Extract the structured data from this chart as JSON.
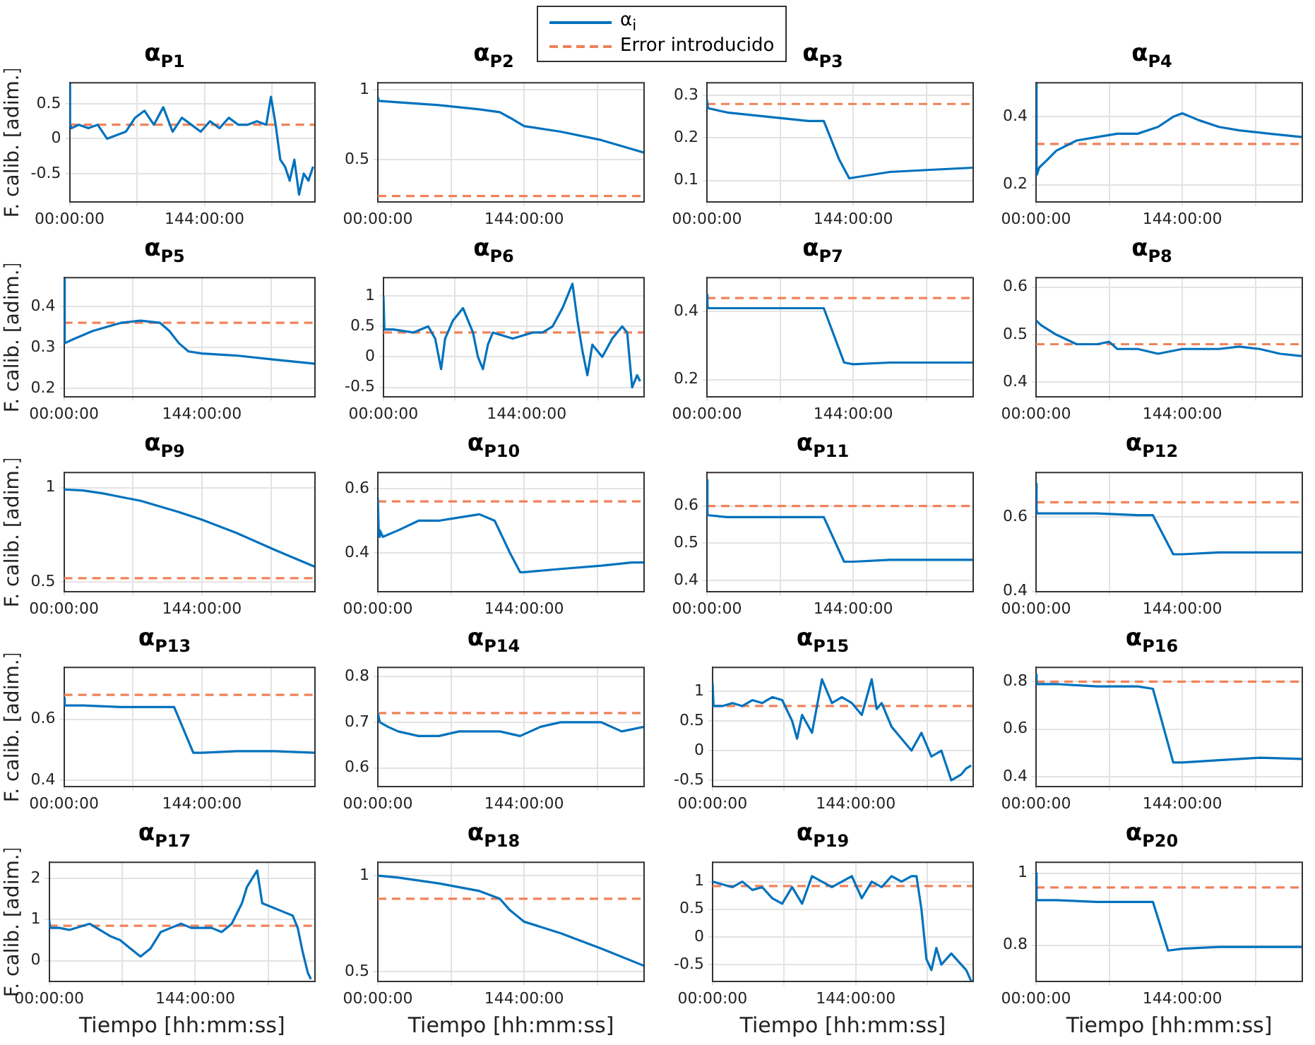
{
  "chart_data": [
    {
      "type": "line",
      "title": "α$_{P1}$",
      "ylabel": "F. calib. [adim.]",
      "legend": "top",
      "xlim": [
        0,
        262
      ],
      "xticks": [
        {
          "value": 0,
          "label": "00:00:00"
        },
        {
          "value": 72,
          "label": null
        },
        {
          "value": 144,
          "label": "144:00:00"
        },
        {
          "value": 216,
          "label": null
        }
      ],
      "ylim": [
        -0.9,
        0.8
      ],
      "yticks": [
        -0.5,
        0,
        0.5
      ],
      "grid": true,
      "series": [
        {
          "name": "α$_{i}$",
          "color": "#0072bd",
          "x": [
            0,
            0.5,
            2,
            10,
            20,
            30,
            40,
            50,
            60,
            70,
            80,
            90,
            100,
            110,
            120,
            130,
            140,
            150,
            160,
            170,
            180,
            190,
            200,
            210,
            215,
            220,
            225,
            230,
            235,
            240,
            245,
            250,
            255,
            260
          ],
          "values": [
            0.8,
            0.2,
            0.15,
            0.2,
            0.15,
            0.2,
            0.0,
            0.05,
            0.1,
            0.3,
            0.4,
            0.2,
            0.45,
            0.1,
            0.3,
            0.2,
            0.1,
            0.25,
            0.15,
            0.3,
            0.2,
            0.2,
            0.25,
            0.2,
            0.6,
            0.2,
            -0.3,
            -0.4,
            -0.6,
            -0.3,
            -0.8,
            -0.5,
            -0.6,
            -0.4
          ]
        },
        {
          "name": "Error introducido",
          "color": "#f0825a",
          "line_style": "dashed",
          "x": [
            0,
            262
          ],
          "values": [
            0.2,
            0.2
          ]
        }
      ]
    },
    {
      "type": "line",
      "title": "α$_{P2}$",
      "xlim": [
        0,
        262
      ],
      "xticks": [
        {
          "value": 0,
          "label": "00:00:00"
        },
        {
          "value": 72,
          "label": null
        },
        {
          "value": 144,
          "label": "144:00:00"
        },
        {
          "value": 216,
          "label": null
        }
      ],
      "ylim": [
        0.2,
        1.05
      ],
      "yticks": [
        0.5,
        1
      ],
      "grid": true,
      "series": [
        {
          "color": "#0072bd",
          "x": [
            0,
            1,
            20,
            60,
            100,
            120,
            130,
            144,
            180,
            220,
            262
          ],
          "values": [
            0.95,
            0.92,
            0.91,
            0.89,
            0.86,
            0.84,
            0.8,
            0.74,
            0.7,
            0.64,
            0.55
          ]
        },
        {
          "color": "#f0825a",
          "line_style": "dashed",
          "x": [
            0,
            262
          ],
          "values": [
            0.24,
            0.24
          ]
        }
      ]
    },
    {
      "type": "line",
      "title": "α$_{P3}$",
      "xlim": [
        0,
        262
      ],
      "xticks": [
        {
          "value": 0,
          "label": "00:00:00"
        },
        {
          "value": 72,
          "label": null
        },
        {
          "value": 144,
          "label": "144:00:00"
        },
        {
          "value": 216,
          "label": null
        }
      ],
      "ylim": [
        0.05,
        0.33
      ],
      "yticks": [
        0.1,
        0.2,
        0.3
      ],
      "grid": true,
      "series": [
        {
          "color": "#0072bd",
          "x": [
            0,
            1,
            20,
            60,
            100,
            115,
            130,
            140,
            180,
            220,
            262
          ],
          "values": [
            0.29,
            0.27,
            0.26,
            0.25,
            0.24,
            0.24,
            0.15,
            0.105,
            0.12,
            0.125,
            0.13
          ]
        },
        {
          "color": "#f0825a",
          "line_style": "dashed",
          "x": [
            0,
            262
          ],
          "values": [
            0.28,
            0.28
          ]
        }
      ]
    },
    {
      "type": "line",
      "title": "α$_{P4}$",
      "xlim": [
        0,
        262
      ],
      "xticks": [
        {
          "value": 0,
          "label": "00:00:00"
        },
        {
          "value": 72,
          "label": null
        },
        {
          "value": 144,
          "label": "144:00:00"
        },
        {
          "value": 216,
          "label": null
        }
      ],
      "ylim": [
        0.15,
        0.5
      ],
      "yticks": [
        0.2,
        0.4
      ],
      "grid": true,
      "series": [
        {
          "color": "#0072bd",
          "x": [
            0,
            0.5,
            1,
            3,
            10,
            20,
            40,
            60,
            80,
            100,
            120,
            135,
            144,
            160,
            180,
            200,
            230,
            262
          ],
          "values": [
            0.5,
            0.25,
            0.23,
            0.25,
            0.27,
            0.3,
            0.33,
            0.34,
            0.35,
            0.35,
            0.37,
            0.4,
            0.41,
            0.39,
            0.37,
            0.36,
            0.35,
            0.34
          ]
        },
        {
          "color": "#f0825a",
          "line_style": "dashed",
          "x": [
            0,
            262
          ],
          "values": [
            0.32,
            0.32
          ]
        }
      ]
    },
    {
      "type": "line",
      "title": "α$_{P5}$",
      "ylabel": "F. calib. [adim.]",
      "xlim": [
        0,
        262
      ],
      "xticks": [
        {
          "value": 0,
          "label": "00:00:00"
        },
        {
          "value": 72,
          "label": null
        },
        {
          "value": 144,
          "label": "144:00:00"
        },
        {
          "value": 216,
          "label": null
        }
      ],
      "ylim": [
        0.18,
        0.47
      ],
      "yticks": [
        0.2,
        0.3,
        0.4
      ],
      "grid": true,
      "series": [
        {
          "color": "#0072bd",
          "x": [
            0,
            0.5,
            1,
            10,
            30,
            60,
            80,
            100,
            110,
            120,
            130,
            144,
            180,
            220,
            262
          ],
          "values": [
            0.47,
            0.31,
            0.31,
            0.32,
            0.34,
            0.36,
            0.365,
            0.36,
            0.34,
            0.31,
            0.29,
            0.285,
            0.28,
            0.27,
            0.26
          ]
        },
        {
          "color": "#f0825a",
          "line_style": "dashed",
          "x": [
            0,
            262
          ],
          "values": [
            0.36,
            0.36
          ]
        }
      ]
    },
    {
      "type": "line",
      "title": "α$_{P6}$",
      "xlim": [
        0,
        262
      ],
      "xticks": [
        {
          "value": 0,
          "label": "00:00:00"
        },
        {
          "value": 72,
          "label": null
        },
        {
          "value": 144,
          "label": "144:00:00"
        },
        {
          "value": 216,
          "label": null
        }
      ],
      "ylim": [
        -0.65,
        1.3
      ],
      "yticks": [
        -0.5,
        0,
        0.5,
        1
      ],
      "grid": true,
      "series": [
        {
          "color": "#0072bd",
          "x": [
            0,
            1,
            10,
            30,
            45,
            52,
            58,
            62,
            70,
            80,
            90,
            95,
            100,
            105,
            110,
            120,
            130,
            140,
            150,
            160,
            170,
            180,
            185,
            190,
            195,
            200,
            205,
            210,
            220,
            230,
            240,
            245,
            250,
            255,
            258
          ],
          "values": [
            1.0,
            0.45,
            0.45,
            0.4,
            0.5,
            0.3,
            -0.2,
            0.3,
            0.6,
            0.8,
            0.4,
            0.0,
            -0.2,
            0.2,
            0.4,
            0.35,
            0.3,
            0.35,
            0.4,
            0.4,
            0.5,
            0.8,
            1.0,
            1.2,
            0.6,
            0.1,
            -0.3,
            0.2,
            0.0,
            0.3,
            0.5,
            0.4,
            -0.5,
            -0.3,
            -0.4
          ]
        },
        {
          "color": "#f0825a",
          "line_style": "dashed",
          "x": [
            0,
            262
          ],
          "values": [
            0.4,
            0.4
          ]
        }
      ]
    },
    {
      "type": "line",
      "title": "α$_{P7}$",
      "xlim": [
        0,
        262
      ],
      "xticks": [
        {
          "value": 0,
          "label": "00:00:00"
        },
        {
          "value": 72,
          "label": null
        },
        {
          "value": 144,
          "label": "144:00:00"
        },
        {
          "value": 216,
          "label": null
        }
      ],
      "ylim": [
        0.15,
        0.5
      ],
      "yticks": [
        0.2,
        0.4
      ],
      "grid": true,
      "series": [
        {
          "color": "#0072bd",
          "x": [
            0,
            0.5,
            1,
            20,
            60,
            100,
            115,
            135,
            144,
            180,
            220,
            262
          ],
          "values": [
            0.45,
            0.42,
            0.41,
            0.41,
            0.41,
            0.41,
            0.41,
            0.25,
            0.245,
            0.25,
            0.25,
            0.25
          ]
        },
        {
          "color": "#f0825a",
          "line_style": "dashed",
          "x": [
            0,
            262
          ],
          "values": [
            0.44,
            0.44
          ]
        }
      ]
    },
    {
      "type": "line",
      "title": "α$_{P8}$",
      "xlim": [
        0,
        262
      ],
      "xticks": [
        {
          "value": 0,
          "label": "00:00:00"
        },
        {
          "value": 72,
          "label": null
        },
        {
          "value": 144,
          "label": "144:00:00"
        },
        {
          "value": 216,
          "label": null
        }
      ],
      "ylim": [
        0.37,
        0.62
      ],
      "yticks": [
        0.4,
        0.5,
        0.6
      ],
      "grid": true,
      "series": [
        {
          "color": "#0072bd",
          "x": [
            0,
            5,
            20,
            40,
            60,
            72,
            80,
            100,
            120,
            144,
            180,
            200,
            220,
            240,
            262
          ],
          "values": [
            0.53,
            0.52,
            0.5,
            0.48,
            0.48,
            0.485,
            0.47,
            0.47,
            0.46,
            0.47,
            0.47,
            0.475,
            0.47,
            0.46,
            0.455
          ]
        },
        {
          "color": "#f0825a",
          "line_style": "dashed",
          "x": [
            0,
            262
          ],
          "values": [
            0.48,
            0.48
          ]
        }
      ]
    },
    {
      "type": "line",
      "title": "α$_{P9}$",
      "ylabel": "F. calib. [adim.]",
      "xlim": [
        0,
        262
      ],
      "xticks": [
        {
          "value": 0,
          "label": "00:00:00"
        },
        {
          "value": 72,
          "label": null
        },
        {
          "value": 144,
          "label": "144:00:00"
        },
        {
          "value": 216,
          "label": null
        }
      ],
      "ylim": [
        0.45,
        1.08
      ],
      "yticks": [
        0.5,
        1
      ],
      "grid": true,
      "series": [
        {
          "color": "#0072bd",
          "x": [
            0,
            20,
            40,
            60,
            80,
            100,
            120,
            144,
            180,
            220,
            262
          ],
          "values": [
            0.99,
            0.985,
            0.97,
            0.95,
            0.93,
            0.9,
            0.87,
            0.83,
            0.76,
            0.67,
            0.58
          ]
        },
        {
          "color": "#f0825a",
          "line_style": "dashed",
          "x": [
            0,
            262
          ],
          "values": [
            0.52,
            0.52
          ]
        }
      ]
    },
    {
      "type": "line",
      "title": "α$_{P10}$",
      "xlim": [
        0,
        262
      ],
      "xticks": [
        {
          "value": 0,
          "label": "00:00:00"
        },
        {
          "value": 72,
          "label": null
        },
        {
          "value": 144,
          "label": "144:00:00"
        },
        {
          "value": 216,
          "label": null
        }
      ],
      "ylim": [
        0.28,
        0.65
      ],
      "yticks": [
        0.4,
        0.6
      ],
      "grid": true,
      "series": [
        {
          "color": "#0072bd",
          "x": [
            0,
            1,
            2,
            5,
            20,
            40,
            60,
            80,
            100,
            115,
            130,
            140,
            144,
            180,
            220,
            250,
            262
          ],
          "values": [
            0.57,
            0.45,
            0.47,
            0.45,
            0.47,
            0.5,
            0.5,
            0.51,
            0.52,
            0.5,
            0.4,
            0.34,
            0.34,
            0.35,
            0.36,
            0.37,
            0.37
          ]
        },
        {
          "color": "#f0825a",
          "line_style": "dashed",
          "x": [
            0,
            262
          ],
          "values": [
            0.56,
            0.56
          ]
        }
      ]
    },
    {
      "type": "line",
      "title": "α$_{P11}$",
      "xlim": [
        0,
        262
      ],
      "xticks": [
        {
          "value": 0,
          "label": "00:00:00"
        },
        {
          "value": 72,
          "label": null
        },
        {
          "value": 144,
          "label": "144:00:00"
        },
        {
          "value": 216,
          "label": null
        }
      ],
      "ylim": [
        0.37,
        0.69
      ],
      "yticks": [
        0.4,
        0.5,
        0.6
      ],
      "grid": true,
      "series": [
        {
          "color": "#0072bd",
          "x": [
            0,
            0.5,
            1,
            20,
            60,
            100,
            115,
            135,
            144,
            180,
            220,
            262
          ],
          "values": [
            0.67,
            0.58,
            0.575,
            0.57,
            0.57,
            0.57,
            0.57,
            0.45,
            0.45,
            0.455,
            0.455,
            0.455
          ]
        },
        {
          "color": "#f0825a",
          "line_style": "dashed",
          "x": [
            0,
            262
          ],
          "values": [
            0.6,
            0.6
          ]
        }
      ]
    },
    {
      "type": "line",
      "title": "α$_{P12}$",
      "xlim": [
        0,
        262
      ],
      "xticks": [
        {
          "value": 0,
          "label": "00:00:00"
        },
        {
          "value": 72,
          "label": null
        },
        {
          "value": 144,
          "label": "144:00:00"
        },
        {
          "value": 216,
          "label": null
        }
      ],
      "ylim": [
        0.4,
        0.72
      ],
      "yticks": [
        0.4,
        0.6
      ],
      "grid": true,
      "series": [
        {
          "color": "#0072bd",
          "x": [
            0,
            0.5,
            1,
            20,
            60,
            100,
            115,
            135,
            144,
            180,
            220,
            262
          ],
          "values": [
            0.69,
            0.62,
            0.61,
            0.61,
            0.61,
            0.605,
            0.605,
            0.5,
            0.5,
            0.505,
            0.505,
            0.505
          ]
        },
        {
          "color": "#f0825a",
          "line_style": "dashed",
          "x": [
            0,
            262
          ],
          "values": [
            0.64,
            0.64
          ]
        }
      ]
    },
    {
      "type": "line",
      "title": "α$_{P13}$",
      "ylabel": "F. calib. [adim.]",
      "xlim": [
        0,
        262
      ],
      "xticks": [
        {
          "value": 0,
          "label": "00:00:00"
        },
        {
          "value": 72,
          "label": null
        },
        {
          "value": 144,
          "label": "144:00:00"
        },
        {
          "value": 216,
          "label": null
        }
      ],
      "ylim": [
        0.38,
        0.77
      ],
      "yticks": [
        0.4,
        0.6
      ],
      "grid": true,
      "series": [
        {
          "color": "#0072bd",
          "x": [
            0,
            0.5,
            1,
            20,
            60,
            100,
            115,
            135,
            144,
            180,
            220,
            262
          ],
          "values": [
            0.67,
            0.65,
            0.645,
            0.645,
            0.64,
            0.64,
            0.64,
            0.49,
            0.49,
            0.495,
            0.495,
            0.49
          ]
        },
        {
          "color": "#f0825a",
          "line_style": "dashed",
          "x": [
            0,
            262
          ],
          "values": [
            0.68,
            0.68
          ]
        }
      ]
    },
    {
      "type": "line",
      "title": "α$_{P14}$",
      "xlim": [
        0,
        262
      ],
      "xticks": [
        {
          "value": 0,
          "label": "00:00:00"
        },
        {
          "value": 72,
          "label": null
        },
        {
          "value": 144,
          "label": "144:00:00"
        },
        {
          "value": 216,
          "label": null
        }
      ],
      "ylim": [
        0.56,
        0.82
      ],
      "yticks": [
        0.6,
        0.7,
        0.8
      ],
      "grid": true,
      "series": [
        {
          "color": "#0072bd",
          "x": [
            0,
            2,
            10,
            20,
            40,
            60,
            80,
            100,
            120,
            140,
            160,
            180,
            200,
            220,
            240,
            262
          ],
          "values": [
            0.72,
            0.7,
            0.69,
            0.68,
            0.67,
            0.67,
            0.68,
            0.68,
            0.68,
            0.67,
            0.69,
            0.7,
            0.7,
            0.7,
            0.68,
            0.69
          ]
        },
        {
          "color": "#f0825a",
          "line_style": "dashed",
          "x": [
            0,
            262
          ],
          "values": [
            0.72,
            0.72
          ]
        }
      ]
    },
    {
      "type": "line",
      "title": "α$_{P15}$",
      "xlim": [
        0,
        262
      ],
      "xticks": [
        {
          "value": 0,
          "label": "00:00:00"
        },
        {
          "value": 72,
          "label": null
        },
        {
          "value": 144,
          "label": "144:00:00"
        },
        {
          "value": 216,
          "label": null
        }
      ],
      "ylim": [
        -0.6,
        1.4
      ],
      "yticks": [
        -0.5,
        0,
        0.5,
        1
      ],
      "grid": true,
      "series": [
        {
          "color": "#0072bd",
          "x": [
            0,
            1,
            10,
            20,
            30,
            40,
            50,
            60,
            70,
            80,
            85,
            90,
            100,
            110,
            120,
            130,
            140,
            150,
            160,
            165,
            170,
            180,
            190,
            200,
            210,
            220,
            230,
            240,
            250,
            255,
            260
          ],
          "values": [
            1.15,
            0.75,
            0.75,
            0.8,
            0.75,
            0.85,
            0.8,
            0.9,
            0.85,
            0.5,
            0.2,
            0.6,
            0.3,
            1.2,
            0.8,
            0.9,
            0.8,
            0.6,
            1.2,
            0.7,
            0.8,
            0.4,
            0.2,
            0.0,
            0.3,
            -0.1,
            0.0,
            -0.5,
            -0.4,
            -0.3,
            -0.25
          ]
        },
        {
          "color": "#f0825a",
          "line_style": "dashed",
          "x": [
            0,
            262
          ],
          "values": [
            0.75,
            0.75
          ]
        }
      ]
    },
    {
      "type": "line",
      "title": "α$_{P16}$",
      "xlim": [
        0,
        262
      ],
      "xticks": [
        {
          "value": 0,
          "label": "00:00:00"
        },
        {
          "value": 72,
          "label": null
        },
        {
          "value": 144,
          "label": "144:00:00"
        },
        {
          "value": 216,
          "label": null
        }
      ],
      "ylim": [
        0.36,
        0.86
      ],
      "yticks": [
        0.4,
        0.6,
        0.8
      ],
      "grid": true,
      "series": [
        {
          "color": "#0072bd",
          "x": [
            0,
            0.5,
            1,
            20,
            60,
            100,
            115,
            135,
            144,
            180,
            220,
            262
          ],
          "values": [
            0.83,
            0.8,
            0.79,
            0.79,
            0.78,
            0.78,
            0.77,
            0.46,
            0.46,
            0.47,
            0.48,
            0.475
          ]
        },
        {
          "color": "#f0825a",
          "line_style": "dashed",
          "x": [
            0,
            262
          ],
          "values": [
            0.8,
            0.8
          ]
        }
      ]
    },
    {
      "type": "line",
      "title": "α$_{P17}$",
      "ylabel": "F. calib. [adim.]",
      "xlabel": "Tiempo [hh:mm:ss]",
      "xlim": [
        0,
        262
      ],
      "xticks": [
        {
          "value": 0,
          "label": "00:00:00"
        },
        {
          "value": 72,
          "label": null
        },
        {
          "value": 144,
          "label": "144:00:00"
        },
        {
          "value": 216,
          "label": null
        }
      ],
      "ylim": [
        -0.5,
        2.4
      ],
      "yticks": [
        0,
        1,
        2
      ],
      "grid": true,
      "series": [
        {
          "color": "#0072bd",
          "x": [
            0,
            1,
            10,
            20,
            40,
            60,
            70,
            80,
            90,
            100,
            110,
            120,
            130,
            140,
            150,
            160,
            170,
            180,
            190,
            195,
            200,
            205,
            210,
            220,
            230,
            240,
            245,
            250,
            255,
            258
          ],
          "values": [
            1.0,
            0.8,
            0.8,
            0.75,
            0.9,
            0.6,
            0.5,
            0.3,
            0.1,
            0.3,
            0.7,
            0.8,
            0.9,
            0.8,
            0.8,
            0.8,
            0.7,
            0.9,
            1.4,
            1.8,
            2.0,
            2.2,
            1.4,
            1.3,
            1.2,
            1.1,
            0.8,
            0.2,
            -0.3,
            -0.45
          ]
        },
        {
          "color": "#f0825a",
          "line_style": "dashed",
          "x": [
            0,
            262
          ],
          "values": [
            0.85,
            0.85
          ]
        }
      ]
    },
    {
      "type": "line",
      "title": "α$_{P18}$",
      "xlabel": "Tiempo [hh:mm:ss]",
      "xlim": [
        0,
        262
      ],
      "xticks": [
        {
          "value": 0,
          "label": "00:00:00"
        },
        {
          "value": 72,
          "label": null
        },
        {
          "value": 144,
          "label": "144:00:00"
        },
        {
          "value": 216,
          "label": null
        }
      ],
      "ylim": [
        0.45,
        1.07
      ],
      "yticks": [
        0.5,
        1
      ],
      "grid": true,
      "series": [
        {
          "color": "#0072bd",
          "x": [
            0,
            20,
            60,
            100,
            120,
            130,
            144,
            180,
            220,
            262
          ],
          "values": [
            1.0,
            0.99,
            0.96,
            0.92,
            0.88,
            0.82,
            0.76,
            0.7,
            0.62,
            0.53
          ]
        },
        {
          "color": "#f0825a",
          "line_style": "dashed",
          "x": [
            0,
            262
          ],
          "values": [
            0.88,
            0.88
          ]
        }
      ]
    },
    {
      "type": "line",
      "title": "α$_{P19}$",
      "xlabel": "Tiempo [hh:mm:ss]",
      "xlim": [
        0,
        262
      ],
      "xticks": [
        {
          "value": 0,
          "label": "00:00:00"
        },
        {
          "value": 72,
          "label": null
        },
        {
          "value": 144,
          "label": "144:00:00"
        },
        {
          "value": 216,
          "label": null
        }
      ],
      "ylim": [
        -0.8,
        1.35
      ],
      "yticks": [
        -0.5,
        0,
        0.5,
        1
      ],
      "grid": true,
      "series": [
        {
          "color": "#0072bd",
          "x": [
            0,
            10,
            20,
            30,
            40,
            50,
            60,
            70,
            80,
            90,
            100,
            110,
            120,
            130,
            140,
            150,
            160,
            170,
            180,
            190,
            200,
            205,
            210,
            215,
            220,
            225,
            230,
            240,
            250,
            255,
            260
          ],
          "values": [
            1.0,
            0.95,
            0.9,
            1.0,
            0.85,
            0.9,
            0.7,
            0.6,
            0.9,
            0.6,
            1.1,
            1.0,
            0.9,
            1.0,
            1.1,
            0.7,
            1.0,
            0.9,
            1.1,
            1.0,
            1.1,
            1.1,
            0.5,
            -0.4,
            -0.6,
            -0.2,
            -0.5,
            -0.3,
            -0.5,
            -0.6,
            -0.8
          ]
        },
        {
          "color": "#f0825a",
          "line_style": "dashed",
          "x": [
            0,
            262
          ],
          "values": [
            0.92,
            0.92
          ]
        }
      ]
    },
    {
      "type": "line",
      "title": "α$_{P20}$",
      "xlabel": "Tiempo [hh:mm:ss]",
      "xlim": [
        0,
        262
      ],
      "xticks": [
        {
          "value": 0,
          "label": "00:00:00"
        },
        {
          "value": 72,
          "label": null
        },
        {
          "value": 144,
          "label": "144:00:00"
        },
        {
          "value": 216,
          "label": null
        }
      ],
      "ylim": [
        0.7,
        1.03
      ],
      "yticks": [
        0.8,
        1
      ],
      "grid": true,
      "series": [
        {
          "color": "#0072bd",
          "x": [
            0,
            0.5,
            1,
            20,
            60,
            100,
            115,
            130,
            144,
            180,
            220,
            262
          ],
          "values": [
            1.0,
            0.93,
            0.925,
            0.925,
            0.92,
            0.92,
            0.92,
            0.785,
            0.79,
            0.795,
            0.795,
            0.795
          ]
        },
        {
          "color": "#f0825a",
          "line_style": "dashed",
          "x": [
            0,
            262
          ],
          "values": [
            0.96,
            0.96
          ]
        }
      ]
    }
  ]
}
